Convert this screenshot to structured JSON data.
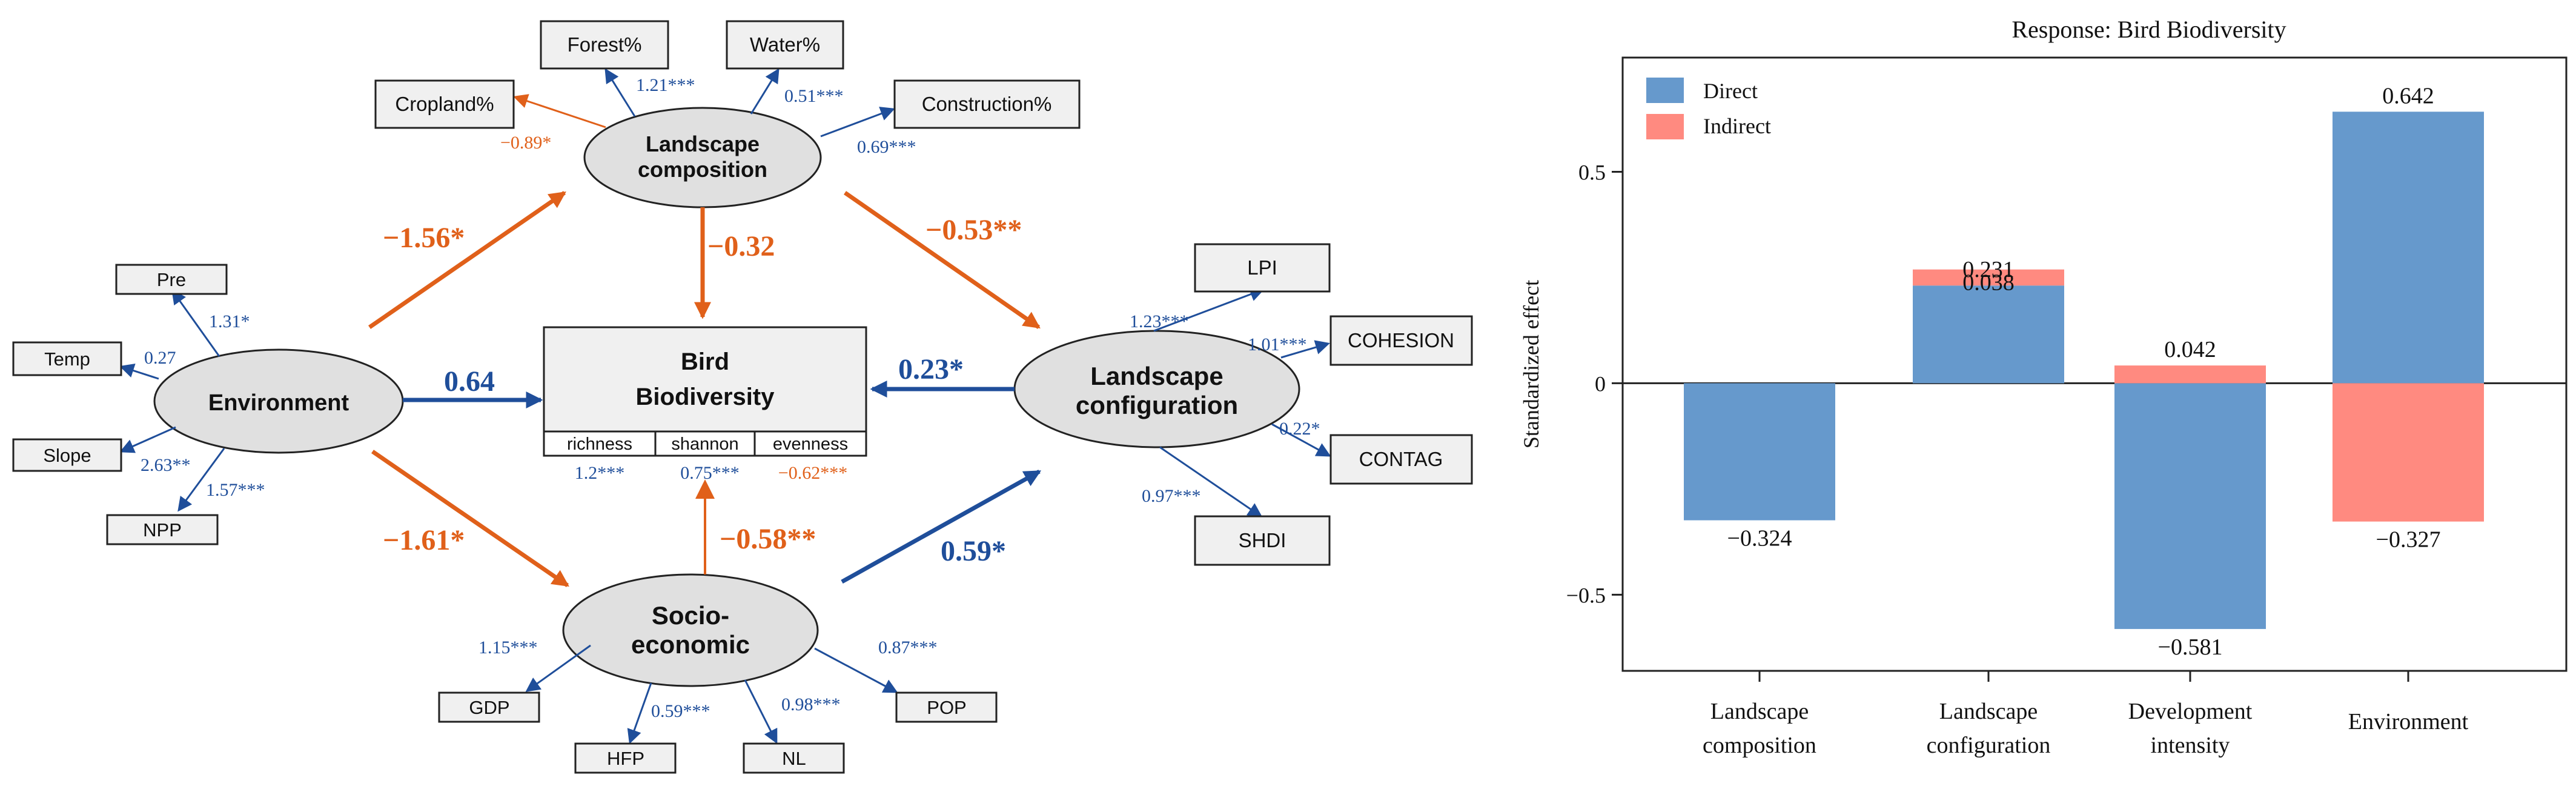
{
  "colors": {
    "blue": "#1f4e9a",
    "orange": "#e0601a",
    "direct_bar": "#6699cc",
    "indirect_bar": "#ff8a80",
    "node_fill": "#e0e0e0",
    "box_fill": "#f0f0f0"
  },
  "sem": {
    "latent": {
      "environment": "Environment",
      "landscape_composition_1": "Landscape",
      "landscape_composition_2": "composition",
      "landscape_configuration_1": "Landscape",
      "landscape_configuration_2": "configuration",
      "socioeconomic_1": "Socio-",
      "socioeconomic_2": "economic"
    },
    "outcome": {
      "title_1": "Bird",
      "title_2": "Biodiversity",
      "indicators": [
        "richness",
        "shannon",
        "evenness"
      ],
      "loadings": [
        "1.2***",
        "0.75***",
        "−0.62***"
      ]
    },
    "environment_indicators": [
      {
        "label": "Pre",
        "loading": "1.31*"
      },
      {
        "label": "Temp",
        "loading": "0.27"
      },
      {
        "label": "Slope",
        "loading": "2.63**"
      },
      {
        "label": "NPP",
        "loading": "1.57***"
      }
    ],
    "composition_indicators": [
      {
        "label": "Cropland%",
        "loading": "−0.89*"
      },
      {
        "label": "Forest%",
        "loading": "1.21***"
      },
      {
        "label": "Water%",
        "loading": "0.51***"
      },
      {
        "label": "Construction%",
        "loading": "0.69***"
      }
    ],
    "configuration_indicators": [
      {
        "label": "LPI",
        "loading": "1.23***"
      },
      {
        "label": "COHESION",
        "loading": "1.01***"
      },
      {
        "label": "CONTAG",
        "loading": "0.22*"
      },
      {
        "label": "SHDI",
        "loading": "0.97***"
      }
    ],
    "socioeconomic_indicators": [
      {
        "label": "GDP",
        "loading": "1.15***"
      },
      {
        "label": "HFP",
        "loading": "0.59***"
      },
      {
        "label": "NL",
        "loading": "0.98***"
      },
      {
        "label": "POP",
        "loading": "0.87***"
      }
    ],
    "paths": {
      "env_to_composition": "−1.56*",
      "env_to_biodiversity": "0.64",
      "env_to_socioeconomic": "−1.61*",
      "composition_to_biodiversity": "−0.32",
      "composition_to_configuration": "−0.53**",
      "configuration_to_biodiversity": "0.23*",
      "socioeconomic_to_biodiversity": "−0.58**",
      "socioeconomic_to_configuration": "0.59*"
    }
  },
  "chart_data": {
    "type": "bar",
    "title": "Response: Bird Biodiversity",
    "xlabel": "",
    "ylabel": "Standardized effect",
    "ylim": [
      -0.68,
      0.77
    ],
    "yticks": [
      -0.5,
      0,
      0.5
    ],
    "ytick_labels": [
      "−0.5",
      "0",
      "0.5"
    ],
    "categories": [
      [
        "Landscape",
        "composition"
      ],
      [
        "Landscape",
        "configuration"
      ],
      [
        "Development",
        "intensity"
      ],
      [
        "Environment"
      ]
    ],
    "series": [
      {
        "name": "Direct",
        "values": [
          -0.324,
          0.231,
          -0.581,
          0.642
        ],
        "labels": [
          "−0.324",
          "0.231",
          "−0.581",
          "0.642"
        ]
      },
      {
        "name": "Indirect",
        "values": [
          0,
          0.038,
          0.042,
          -0.327
        ],
        "labels": [
          "",
          "0.038",
          "0.042",
          "−0.327"
        ]
      }
    ],
    "legend": [
      {
        "name": "Direct"
      },
      {
        "name": "Indirect"
      }
    ],
    "legend_position": "top-left",
    "grid": false
  }
}
